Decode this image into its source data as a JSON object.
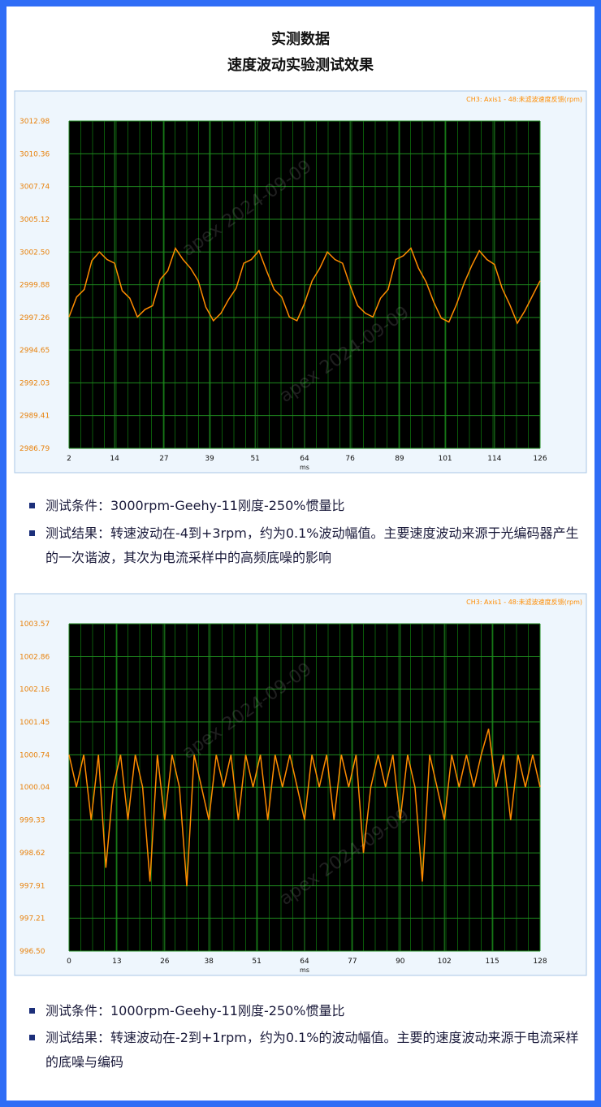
{
  "header": {
    "title": "实测数据",
    "subtitle": "速度波动实验测试效果"
  },
  "watermark": "apex 2024-09-09",
  "chart_data": [
    {
      "type": "line",
      "x_label": "ms",
      "grid": true,
      "x": [
        2,
        4,
        6,
        8,
        10,
        12,
        14,
        16,
        18,
        20,
        22,
        24,
        26,
        28,
        30,
        32,
        34,
        36,
        38,
        40,
        42,
        44,
        46,
        48,
        50,
        52,
        54,
        56,
        58,
        60,
        62,
        64,
        66,
        68,
        70,
        72,
        74,
        76,
        78,
        80,
        82,
        84,
        86,
        88,
        90,
        92,
        94,
        96,
        98,
        100,
        102,
        104,
        106,
        108,
        110,
        112,
        114,
        116,
        118,
        120,
        122,
        124,
        126
      ],
      "series": [
        {
          "name": "CH3: Axis1 - 48:未滤波速度反馈(rpm)",
          "color": "#ff8c00",
          "values": [
            2997.3,
            2998.9,
            2999.5,
            3001.8,
            3002.5,
            3001.9,
            3001.6,
            2999.4,
            2998.8,
            2997.3,
            2997.9,
            2998.2,
            3000.3,
            3001.0,
            3002.8,
            3001.9,
            3001.2,
            3000.2,
            2998.1,
            2997.0,
            2997.6,
            2998.7,
            2999.6,
            3001.6,
            3001.9,
            3002.6,
            3001.0,
            2999.5,
            2998.9,
            2997.3,
            2997.0,
            2998.4,
            3000.2,
            3001.2,
            3002.5,
            3001.9,
            3001.6,
            2999.8,
            2998.2,
            2997.6,
            2997.3,
            2998.8,
            2999.5,
            3001.9,
            3002.2,
            3002.8,
            3001.2,
            3000.1,
            2998.5,
            2997.2,
            2996.9,
            2998.3,
            3000.0,
            3001.4,
            3002.6,
            3001.9,
            3001.5,
            2999.6,
            2998.3,
            2996.8,
            2997.8,
            2999.0,
            3000.2
          ]
        }
      ],
      "xlim": [
        2,
        126
      ],
      "xticks": [
        2,
        14,
        27,
        39,
        51,
        64,
        76,
        89,
        101,
        114,
        126
      ],
      "ylim": [
        2986.79,
        3012.98
      ],
      "yticks": [
        2986.79,
        2989.41,
        2992.03,
        2994.65,
        2997.26,
        2999.88,
        {
          "value": 3002.5,
          "label": "3002.50"
        },
        3005.12,
        3007.74,
        3010.36,
        3012.98
      ]
    },
    {
      "type": "line",
      "x_label": "ms",
      "grid": true,
      "x": [
        0,
        2,
        4,
        6,
        8,
        10,
        12,
        14,
        16,
        18,
        20,
        22,
        24,
        26,
        28,
        30,
        32,
        34,
        36,
        38,
        40,
        42,
        44,
        46,
        48,
        50,
        52,
        54,
        56,
        58,
        60,
        62,
        64,
        66,
        68,
        70,
        72,
        74,
        76,
        78,
        80,
        82,
        84,
        86,
        88,
        90,
        92,
        94,
        96,
        98,
        100,
        102,
        104,
        106,
        108,
        110,
        112,
        114,
        116,
        118,
        120,
        122,
        124,
        126,
        128
      ],
      "series": [
        {
          "name": "CH3: Axis1 - 48:未滤波速度反馈(rpm)",
          "color": "#ff8c00",
          "values": [
            1000.74,
            1000.04,
            1000.74,
            999.33,
            1000.74,
            998.3,
            1000.04,
            1000.74,
            999.33,
            1000.74,
            1000.04,
            998.0,
            1000.74,
            999.33,
            1000.74,
            1000.04,
            997.9,
            1000.74,
            1000.04,
            999.33,
            1000.74,
            1000.04,
            1000.74,
            999.33,
            1000.74,
            1000.04,
            1000.74,
            999.33,
            1000.74,
            1000.04,
            1000.74,
            1000.04,
            999.33,
            1000.74,
            1000.04,
            1000.74,
            999.33,
            1000.74,
            1000.04,
            1000.74,
            998.62,
            1000.04,
            1000.74,
            1000.04,
            1000.74,
            999.33,
            1000.74,
            1000.04,
            998.0,
            1000.74,
            1000.04,
            999.33,
            1000.74,
            1000.04,
            1000.74,
            1000.04,
            1000.74,
            1001.3,
            1000.04,
            1000.74,
            999.33,
            1000.74,
            1000.04,
            1000.74,
            1000.04
          ]
        }
      ],
      "xlim": [
        0,
        128
      ],
      "xticks": [
        0,
        13,
        26,
        38,
        51,
        64,
        77,
        90,
        102,
        115,
        128
      ],
      "ylim": [
        996.5,
        1003.57
      ],
      "yticks": [
        {
          "value": 996.5,
          "label": "996.50"
        },
        997.21,
        997.91,
        998.62,
        999.33,
        1000.04,
        1000.74,
        1001.45,
        1002.16,
        1002.86,
        1003.57
      ]
    }
  ],
  "notes": [
    [
      "测试条件：3000rpm-Geehy-11刚度-250%惯量比",
      "测试结果：转速波动在-4到+3rpm，约为0.1%波动幅值。主要速度波动来源于光编码器产生的一次谐波，其次为电流采样中的高频底噪的影响"
    ],
    [
      "测试条件：1000rpm-Geehy-11刚度-250%惯量比",
      "测试结果：转速波动在-2到+1rpm，约为0.1%的波动幅值。主要的速度波动来源于电流采样的底噪与编码"
    ]
  ]
}
